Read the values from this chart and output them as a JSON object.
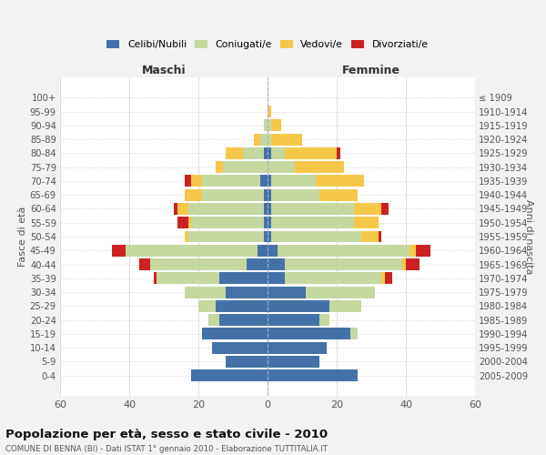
{
  "age_groups": [
    "0-4",
    "5-9",
    "10-14",
    "15-19",
    "20-24",
    "25-29",
    "30-34",
    "35-39",
    "40-44",
    "45-49",
    "50-54",
    "55-59",
    "60-64",
    "65-69",
    "70-74",
    "75-79",
    "80-84",
    "85-89",
    "90-94",
    "95-99",
    "100+"
  ],
  "birth_years": [
    "2005-2009",
    "2000-2004",
    "1995-1999",
    "1990-1994",
    "1985-1989",
    "1980-1984",
    "1975-1979",
    "1970-1974",
    "1965-1969",
    "1960-1964",
    "1955-1959",
    "1950-1954",
    "1945-1949",
    "1940-1944",
    "1935-1939",
    "1930-1934",
    "1925-1929",
    "1920-1924",
    "1915-1919",
    "1910-1914",
    "≤ 1909"
  ],
  "male": {
    "celibi": [
      22,
      12,
      16,
      19,
      14,
      15,
      12,
      14,
      6,
      3,
      1,
      1,
      1,
      1,
      2,
      0,
      1,
      0,
      0,
      0,
      0
    ],
    "coniugati": [
      0,
      0,
      0,
      0,
      3,
      5,
      12,
      18,
      28,
      38,
      22,
      21,
      22,
      18,
      17,
      13,
      6,
      2,
      1,
      0,
      0
    ],
    "vedovi": [
      0,
      0,
      0,
      0,
      0,
      0,
      0,
      0,
      0,
      0,
      1,
      1,
      3,
      5,
      3,
      2,
      5,
      2,
      0,
      0,
      0
    ],
    "divorziati": [
      0,
      0,
      0,
      0,
      0,
      0,
      0,
      1,
      3,
      4,
      0,
      3,
      1,
      0,
      2,
      0,
      0,
      0,
      0,
      0,
      0
    ]
  },
  "female": {
    "nubili": [
      26,
      15,
      17,
      24,
      15,
      18,
      11,
      5,
      5,
      3,
      1,
      1,
      1,
      1,
      1,
      0,
      1,
      0,
      0,
      0,
      0
    ],
    "coniugate": [
      0,
      0,
      0,
      2,
      3,
      9,
      20,
      28,
      34,
      38,
      26,
      24,
      24,
      14,
      13,
      8,
      4,
      1,
      1,
      0,
      0
    ],
    "vedove": [
      0,
      0,
      0,
      0,
      0,
      0,
      0,
      1,
      1,
      2,
      5,
      7,
      8,
      11,
      14,
      14,
      15,
      9,
      3,
      1,
      0
    ],
    "divorziate": [
      0,
      0,
      0,
      0,
      0,
      0,
      0,
      2,
      4,
      4,
      1,
      0,
      2,
      0,
      0,
      0,
      1,
      0,
      0,
      0,
      0
    ]
  },
  "colors": {
    "celibi": "#4472a8",
    "coniugati": "#c5d8a0",
    "vedovi": "#f5c84a",
    "divorziati": "#cc2222"
  },
  "xlim": 60,
  "title": "Popolazione per età, sesso e stato civile - 2010",
  "subtitle": "COMUNE DI BENNA (BI) - Dati ISTAT 1° gennaio 2010 - Elaborazione TUTTITALIA.IT",
  "ylabel_left": "Fasce di età",
  "ylabel_right": "Anni di nascita",
  "xlabel_left": "Maschi",
  "xlabel_right": "Femmine",
  "background_color": "#f2f2f2",
  "plot_bg_color": "#ffffff"
}
